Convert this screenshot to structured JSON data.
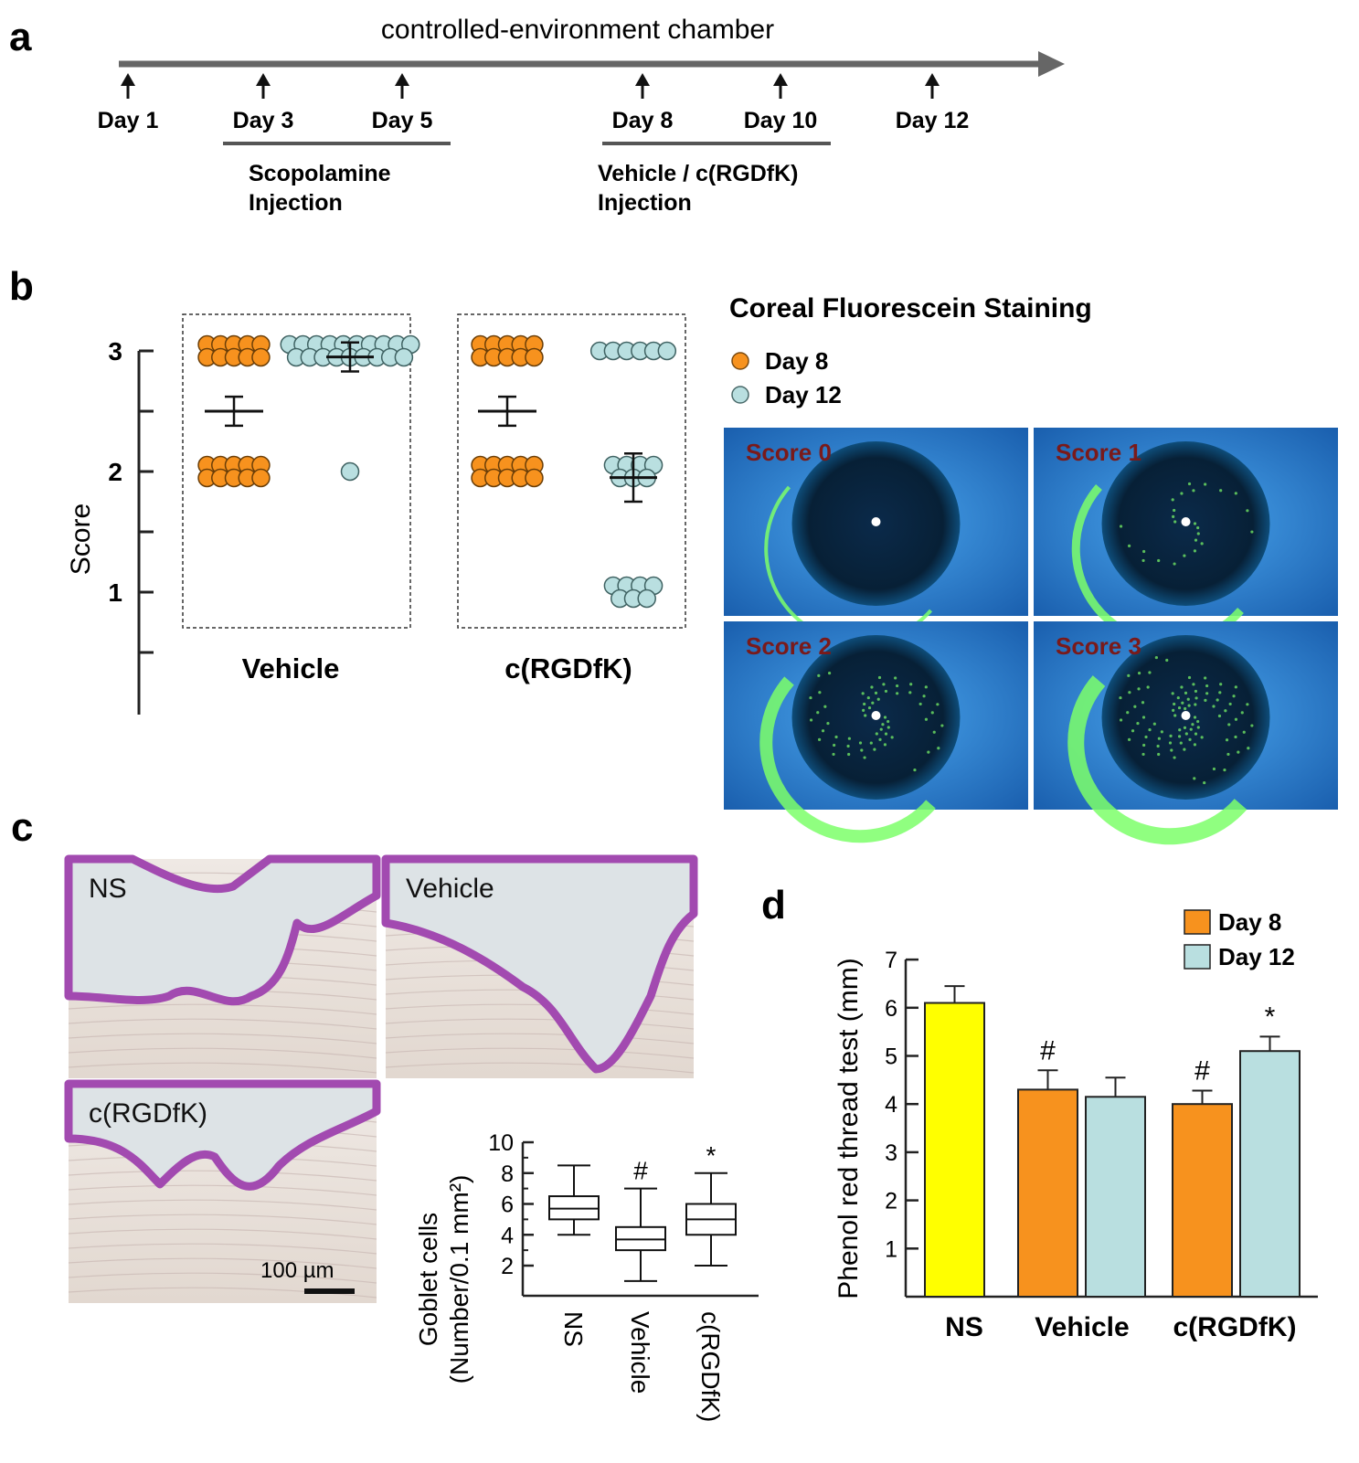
{
  "panel_labels": {
    "a": "a",
    "b": "b",
    "c": "c",
    "d": "d"
  },
  "colors": {
    "day8": "#f7921e",
    "day12": "#b9dfe0",
    "ns": "#ffff00",
    "eye_bg": "#2a7fd4",
    "stain": "#7dff6a"
  },
  "timeline": {
    "title": "controlled-environment chamber",
    "days": [
      "Day 1",
      "Day 3",
      "Day 5",
      "Day 8",
      "Day 10",
      "Day 12"
    ],
    "phase1_line1": "Scopolamine",
    "phase1_line2": "Injection",
    "phase2_line1": "Vehicle / c(RGDfK)",
    "phase2_line2": "Injection"
  },
  "panel_b": {
    "ylabel": "Score",
    "yticks": [
      "1",
      "2",
      "3"
    ],
    "groups": [
      "Vehicle",
      "c(RGDfK)"
    ],
    "legend_title": "Coreal Fluorescein Staining",
    "legend": [
      "Day 8",
      "Day 12"
    ],
    "photo_labels": [
      "Score 0",
      "Score 1",
      "Score 2",
      "Score 3"
    ]
  },
  "panel_c": {
    "photo_labels": [
      "NS",
      "Vehicle",
      "c(RGDfK)"
    ],
    "scale_bar": "100 µm",
    "ylabel_line1": "Goblet cells",
    "ylabel_line2": "(Number/0.1 mm²)",
    "yticks": [
      "2",
      "4",
      "6",
      "8",
      "10"
    ],
    "categories": [
      "NS",
      "Vehicle",
      "c(RGDfK)"
    ],
    "sig_marks": [
      "#",
      "*"
    ]
  },
  "chart_data": [
    {
      "type": "scatter",
      "panel": "b",
      "ylabel": "Score",
      "ylim": [
        0.5,
        3.5
      ],
      "categories": [
        "Vehicle",
        "c(RGDfK)"
      ],
      "series": [
        {
          "name": "Day 8",
          "points": [
            {
              "group": "Vehicle",
              "values": {
                "3": 10,
                "2": 10
              },
              "mean": 2.5
            },
            {
              "group": "c(RGDfK)",
              "values": {
                "3": 10,
                "2": 10
              },
              "mean": 2.5
            }
          ]
        },
        {
          "name": "Day 12",
          "points": [
            {
              "group": "Vehicle",
              "values": {
                "3": 19,
                "2": 1
              },
              "mean": 2.95
            },
            {
              "group": "c(RGDfK)",
              "values": {
                "3": 6,
                "2": 7,
                "1": 7
              },
              "mean": 1.95
            }
          ]
        }
      ]
    },
    {
      "type": "box",
      "panel": "c",
      "ylabel": "Goblet cells (Number/0.1 mm²)",
      "ylim": [
        1,
        10
      ],
      "categories": [
        "NS",
        "Vehicle",
        "c(RGDfK)"
      ],
      "boxes": [
        {
          "min": 4,
          "q1": 5,
          "median": 5.7,
          "q3": 6.5,
          "max": 8.5
        },
        {
          "min": 1,
          "q1": 3,
          "median": 3.7,
          "q3": 4.5,
          "max": 7
        },
        {
          "min": 2,
          "q1": 4,
          "median": 5,
          "q3": 6,
          "max": 8
        }
      ],
      "annotations": [
        {
          "category": "Vehicle",
          "mark": "#"
        },
        {
          "category": "c(RGDfK)",
          "mark": "*"
        }
      ]
    },
    {
      "type": "bar",
      "panel": "d",
      "ylabel": "Phenol red thread test (mm)",
      "ylim": [
        0,
        7
      ],
      "yticks": [
        "1",
        "2",
        "3",
        "4",
        "5",
        "6",
        "7"
      ],
      "categories": [
        "NS",
        "Vehicle",
        "c(RGDfK)"
      ],
      "legend": [
        "Day 8",
        "Day 12"
      ],
      "bars": [
        {
          "category": "NS",
          "series": "NS",
          "value": 6.1,
          "err": 0.35
        },
        {
          "category": "Vehicle",
          "series": "Day 8",
          "value": 4.3,
          "err": 0.4,
          "mark": "#"
        },
        {
          "category": "Vehicle",
          "series": "Day 12",
          "value": 4.15,
          "err": 0.4
        },
        {
          "category": "c(RGDfK)",
          "series": "Day 8",
          "value": 4.0,
          "err": 0.28,
          "mark": "#"
        },
        {
          "category": "c(RGDfK)",
          "series": "Day 12",
          "value": 5.1,
          "err": 0.3,
          "mark": "*"
        }
      ]
    }
  ]
}
